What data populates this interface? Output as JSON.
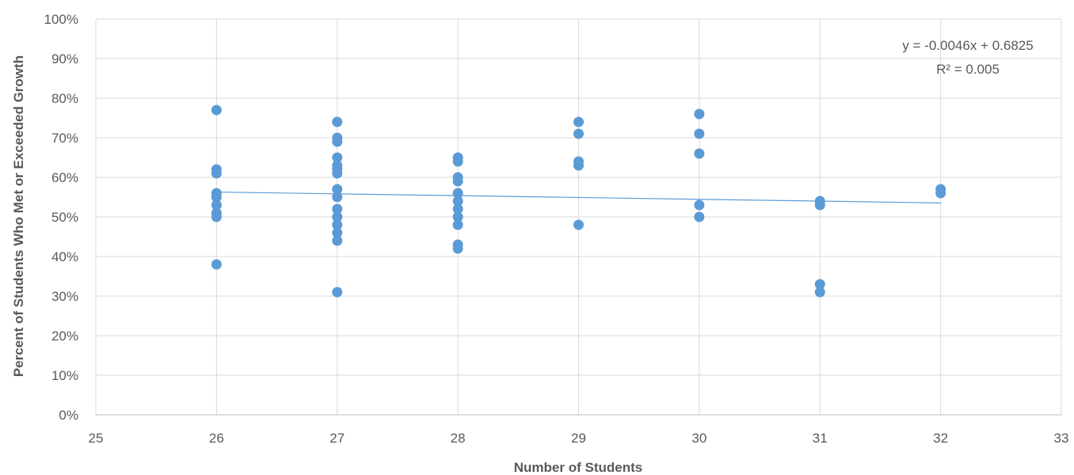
{
  "chart_data": {
    "type": "scatter",
    "title": "",
    "xlabel": "Number of Students",
    "ylabel": "Percent of Students Who Met or Exceeded Growth",
    "xlim": [
      25,
      33
    ],
    "ylim": [
      0,
      1
    ],
    "x_ticks": [
      "25",
      "26",
      "27",
      "28",
      "29",
      "30",
      "31",
      "32",
      "33"
    ],
    "y_ticks": [
      "0%",
      "10%",
      "20%",
      "30%",
      "40%",
      "50%",
      "60%",
      "70%",
      "80%",
      "90%",
      "100%"
    ],
    "grid": true,
    "legend": "none",
    "marker_color": "#5b9bd5",
    "trendline_color": "#5b9bd5",
    "series": [
      {
        "points": [
          [
            26,
            0.77
          ],
          [
            26,
            0.62
          ],
          [
            26,
            0.61
          ],
          [
            26,
            0.56
          ],
          [
            26,
            0.55
          ],
          [
            26,
            0.53
          ],
          [
            26,
            0.51
          ],
          [
            26,
            0.5
          ],
          [
            26,
            0.38
          ],
          [
            27,
            0.74
          ],
          [
            27,
            0.7
          ],
          [
            27,
            0.69
          ],
          [
            27,
            0.65
          ],
          [
            27,
            0.63
          ],
          [
            27,
            0.62
          ],
          [
            27,
            0.61
          ],
          [
            27,
            0.57
          ],
          [
            27,
            0.55
          ],
          [
            27,
            0.52
          ],
          [
            27,
            0.5
          ],
          [
            27,
            0.48
          ],
          [
            27,
            0.46
          ],
          [
            27,
            0.44
          ],
          [
            27,
            0.31
          ],
          [
            28,
            0.65
          ],
          [
            28,
            0.64
          ],
          [
            28,
            0.6
          ],
          [
            28,
            0.59
          ],
          [
            28,
            0.56
          ],
          [
            28,
            0.54
          ],
          [
            28,
            0.52
          ],
          [
            28,
            0.5
          ],
          [
            28,
            0.48
          ],
          [
            28,
            0.43
          ],
          [
            28,
            0.42
          ],
          [
            29,
            0.74
          ],
          [
            29,
            0.71
          ],
          [
            29,
            0.64
          ],
          [
            29,
            0.63
          ],
          [
            29,
            0.48
          ],
          [
            30,
            0.76
          ],
          [
            30,
            0.71
          ],
          [
            30,
            0.66
          ],
          [
            30,
            0.53
          ],
          [
            30,
            0.5
          ],
          [
            31,
            0.54
          ],
          [
            31,
            0.53
          ],
          [
            31,
            0.33
          ],
          [
            31,
            0.31
          ],
          [
            32,
            0.57
          ],
          [
            32,
            0.56
          ]
        ]
      }
    ],
    "trendline": {
      "slope": -0.0046,
      "intercept": 0.6825,
      "x_start": 26,
      "x_end": 32,
      "equation_label": "y = -0.0046x + 0.6825",
      "r2_label": "R² = 0.005"
    }
  }
}
